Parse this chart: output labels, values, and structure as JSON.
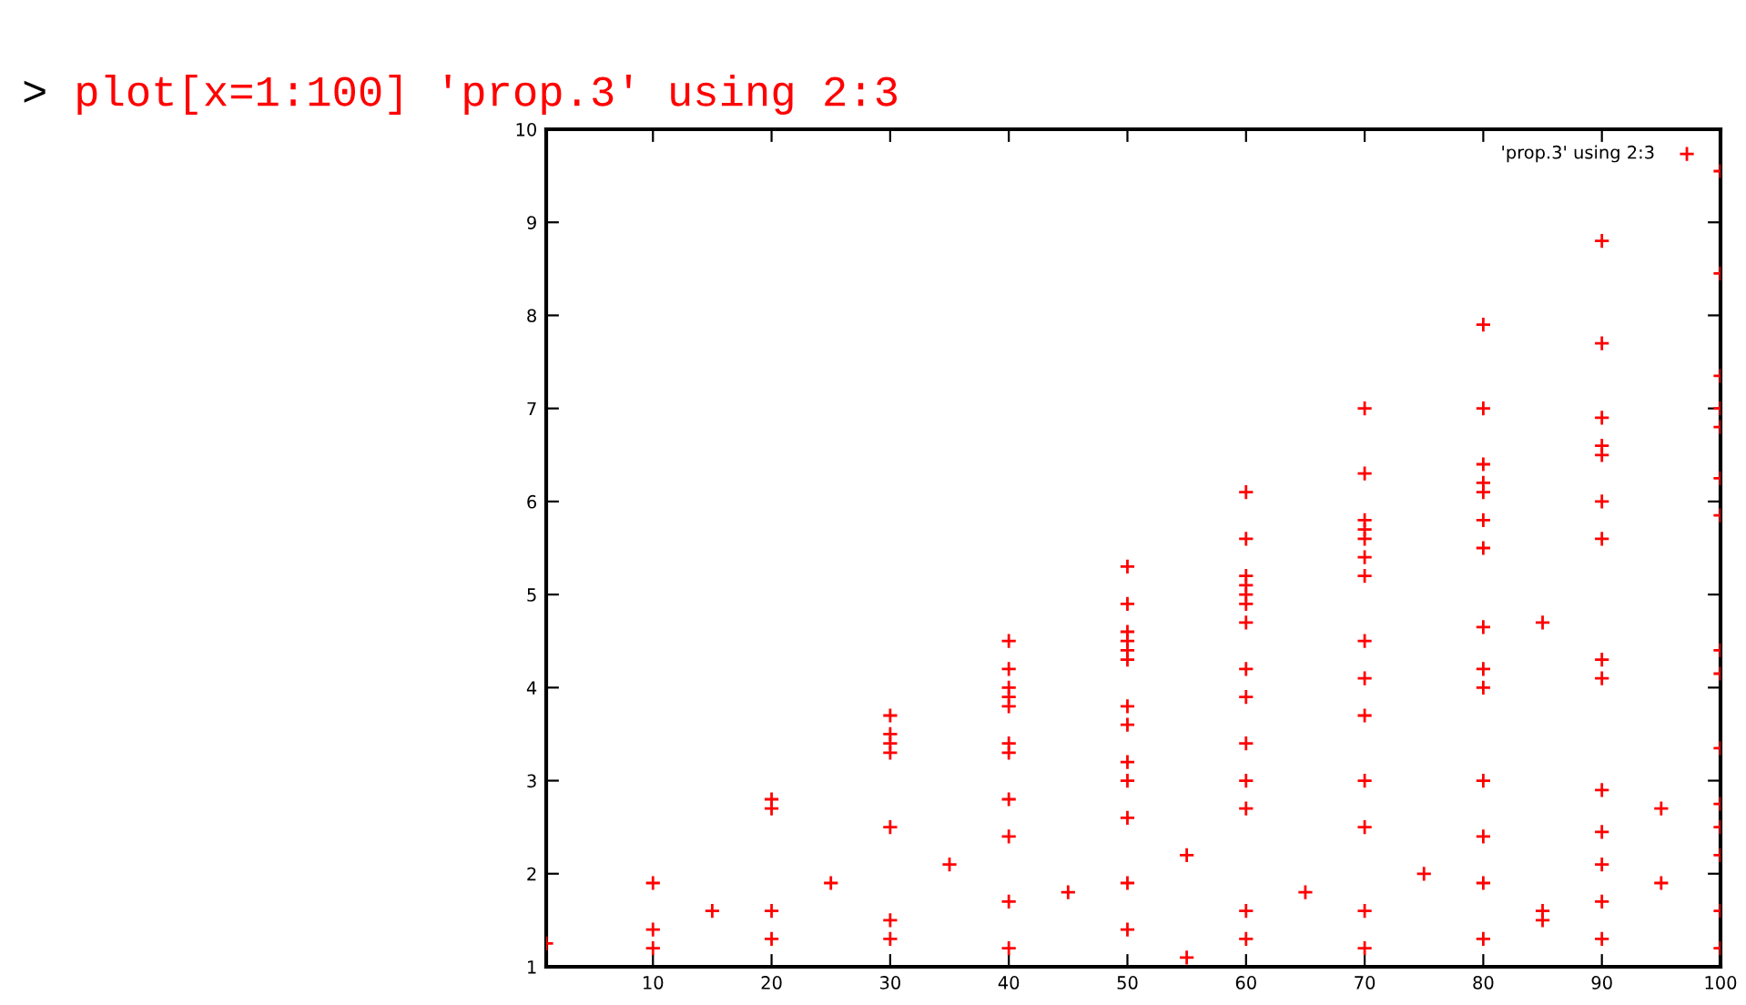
{
  "chart_data": {
    "type": "scatter",
    "xlim": [
      1,
      100
    ],
    "ylim": [
      1,
      10
    ],
    "xticks": [
      10,
      20,
      30,
      40,
      50,
      60,
      70,
      80,
      90,
      100
    ],
    "yticks": [
      1,
      2,
      3,
      4,
      5,
      6,
      7,
      8,
      9,
      10
    ],
    "grid": false,
    "legend": "top right",
    "marker": "cross",
    "annotations": [
      ">",
      "plot[x=1:100] 'prop.3' using 2:3"
    ],
    "series": [
      {
        "name": "'prop.3' using 2:3",
        "color": "#ff0000",
        "x": [
          1,
          10,
          20,
          30,
          40,
          50,
          60,
          70,
          80,
          90,
          100,
          20,
          30,
          40,
          50,
          60,
          70,
          80,
          90,
          100,
          30,
          40,
          50,
          60,
          70,
          80,
          90,
          100,
          30,
          40,
          50,
          60,
          70,
          80,
          90,
          100,
          40,
          50,
          60,
          70,
          80,
          90,
          100,
          50,
          60,
          70,
          80,
          90,
          100,
          60,
          70,
          80,
          90,
          100,
          40,
          50,
          60,
          70,
          80,
          85,
          40,
          50,
          60,
          70,
          80,
          90,
          100,
          50,
          60,
          70,
          80,
          90,
          100,
          30,
          40,
          50,
          60,
          70,
          80,
          90,
          100,
          40,
          50,
          60,
          70,
          80,
          90,
          100,
          85,
          90,
          95,
          100,
          10,
          20,
          30,
          40,
          50,
          55,
          60,
          70,
          80,
          90,
          100,
          15,
          25,
          35,
          45,
          55,
          65,
          75,
          85,
          95,
          100,
          10,
          20,
          30,
          40,
          50,
          60,
          70,
          80,
          90,
          100
        ],
        "values": [
          1.25,
          1.9,
          2.8,
          3.7,
          4.5,
          5.3,
          6.1,
          7.0,
          7.9,
          8.8,
          9.55,
          2.7,
          3.5,
          4.2,
          4.9,
          5.6,
          6.3,
          7.0,
          7.7,
          8.45,
          3.4,
          4.0,
          4.6,
          5.2,
          5.8,
          6.4,
          6.9,
          7.35,
          3.3,
          3.9,
          4.5,
          5.1,
          5.7,
          6.2,
          6.6,
          7.0,
          3.8,
          4.4,
          5.0,
          5.6,
          6.1,
          6.5,
          6.8,
          4.3,
          4.9,
          5.4,
          5.8,
          6.0,
          6.25,
          4.7,
          5.2,
          5.5,
          5.6,
          5.85,
          3.4,
          3.8,
          4.2,
          4.5,
          4.65,
          4.7,
          3.3,
          3.6,
          3.9,
          4.1,
          4.2,
          4.3,
          4.4,
          3.2,
          3.4,
          3.7,
          4.0,
          4.1,
          4.15,
          2.5,
          2.8,
          3.0,
          3.0,
          3.0,
          3.0,
          2.9,
          2.75,
          2.4,
          2.6,
          2.7,
          2.5,
          2.4,
          2.45,
          2.5,
          1.6,
          2.1,
          2.7,
          3.35,
          1.4,
          1.3,
          1.5,
          1.2,
          1.4,
          1.1,
          1.6,
          1.2,
          1.9,
          1.3,
          1.2,
          1.6,
          1.9,
          2.1,
          1.8,
          2.2,
          1.8,
          2.0,
          1.5,
          1.9,
          2.2,
          1.2,
          1.6,
          1.3,
          1.7,
          1.9,
          1.3,
          1.6,
          1.3,
          1.7,
          1.6
        ]
      }
    ]
  }
}
